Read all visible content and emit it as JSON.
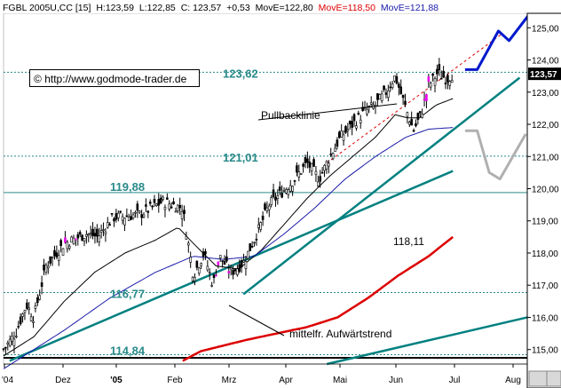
{
  "header": {
    "symbol": "FGBL 2005U,CC [15]",
    "high": "H:123,59",
    "low": "L:122,85",
    "close": "C: 123,57",
    "change": "+0,53",
    "move_e_label": "MovE=122,80",
    "move_e_red_label": "MovE=118,50",
    "move_e_blue_label": "MovE=121,88"
  },
  "copyright": {
    "symbol": "©",
    "url": "http://www.godmode-trader.de"
  },
  "chart_data": {
    "type": "candlestick",
    "ylim": [
      114.55,
      125.45
    ],
    "y_ticks": [
      "125,00",
      "124,00",
      "123,00",
      "122,00",
      "121,00",
      "120,00",
      "119,00",
      "118,00",
      "117,00",
      "116,00",
      "115,00"
    ],
    "x_ticks": [
      "2004",
      "Dez",
      "2005",
      "Feb",
      "Mrz",
      "Apr",
      "Mai",
      "Jun",
      "Jul",
      "Aug"
    ],
    "last_price": "123,57",
    "levels": [
      {
        "label": "123,62",
        "value": 123.62
      },
      {
        "label": "121,01",
        "value": 121.01
      },
      {
        "label": "119,88",
        "value": 119.88
      },
      {
        "label": "116,77",
        "value": 116.77
      },
      {
        "label": "114,84",
        "value": 114.84
      }
    ],
    "annotations": [
      {
        "text": "Pullbacklinie"
      },
      {
        "text": "118,11"
      },
      {
        "text": "mittelfr. Aufwärtstrend"
      }
    ],
    "colors": {
      "price": "#000000",
      "ma_black": "#000000",
      "ma_blue": "#1a1aaa",
      "ma_red": "#dd0000",
      "trend": "#008080",
      "level": "#2a8a8a",
      "forecast_blue": "#0018cc",
      "forecast_gray": "#b0b0b0",
      "highlight": "#ee00ee"
    },
    "series": [
      {
        "name": "Kurs",
        "style": "candles",
        "anchors": [
          [
            0,
            115.0
          ],
          [
            8,
            115.5
          ],
          [
            15,
            116.4
          ],
          [
            20,
            116.0
          ],
          [
            28,
            117.6
          ],
          [
            40,
            118.3
          ],
          [
            55,
            118.6
          ],
          [
            62,
            118.5
          ],
          [
            72,
            119.1
          ],
          [
            90,
            119.2
          ],
          [
            105,
            119.6
          ],
          [
            118,
            119.4
          ],
          [
            125,
            117.3
          ],
          [
            132,
            118.0
          ],
          [
            138,
            117.0
          ],
          [
            142,
            117.9
          ],
          [
            150,
            117.4
          ],
          [
            158,
            117.7
          ],
          [
            166,
            118.5
          ],
          [
            175,
            119.5
          ],
          [
            190,
            120.2
          ],
          [
            200,
            120.8
          ],
          [
            208,
            120.3
          ],
          [
            215,
            121.0
          ],
          [
            222,
            121.6
          ],
          [
            230,
            122.0
          ],
          [
            238,
            122.4
          ],
          [
            245,
            122.6
          ],
          [
            252,
            123.0
          ],
          [
            258,
            123.5
          ],
          [
            265,
            122.5
          ],
          [
            270,
            121.8
          ],
          [
            275,
            122.3
          ],
          [
            280,
            123.2
          ],
          [
            286,
            123.6
          ],
          [
            292,
            123.4
          ],
          [
            296,
            123.57
          ]
        ]
      },
      {
        "name": "MovE",
        "color": "#000000",
        "anchors": [
          [
            0,
            114.8
          ],
          [
            20,
            115.4
          ],
          [
            40,
            116.5
          ],
          [
            60,
            117.4
          ],
          [
            80,
            118.0
          ],
          [
            100,
            118.4
          ],
          [
            115,
            118.8
          ],
          [
            125,
            118.3
          ],
          [
            140,
            117.6
          ],
          [
            155,
            117.5
          ],
          [
            170,
            118.1
          ],
          [
            185,
            118.9
          ],
          [
            200,
            119.7
          ],
          [
            215,
            120.4
          ],
          [
            230,
            121.0
          ],
          [
            245,
            121.6
          ],
          [
            258,
            122.3
          ],
          [
            266,
            122.2
          ],
          [
            274,
            122.2
          ],
          [
            285,
            122.6
          ],
          [
            296,
            122.8
          ]
        ]
      },
      {
        "name": "MovE",
        "color": "#1a1aaa",
        "anchors": [
          [
            0,
            114.4
          ],
          [
            40,
            115.6
          ],
          [
            70,
            116.6
          ],
          [
            100,
            117.4
          ],
          [
            125,
            117.9
          ],
          [
            145,
            117.8
          ],
          [
            165,
            117.9
          ],
          [
            185,
            118.6
          ],
          [
            205,
            119.4
          ],
          [
            225,
            120.3
          ],
          [
            245,
            121.0
          ],
          [
            265,
            121.6
          ],
          [
            280,
            121.85
          ],
          [
            296,
            121.9
          ]
        ]
      },
      {
        "name": "MovE",
        "color": "#dd0000",
        "anchors": [
          [
            118,
            114.65
          ],
          [
            130,
            114.95
          ],
          [
            160,
            115.3
          ],
          [
            200,
            115.7
          ],
          [
            220,
            116.0
          ],
          [
            240,
            116.6
          ],
          [
            260,
            117.3
          ],
          [
            280,
            117.9
          ],
          [
            296,
            118.5
          ]
        ]
      }
    ],
    "trendlines": [
      {
        "from": [
          4,
          114.65
        ],
        "to": [
          296,
          120.55
        ],
        "color": "#008080"
      },
      {
        "from": [
          213,
          114.55
        ],
        "to": [
          345,
          116.0
        ],
        "color": "#008080"
      },
      {
        "from": [
          158,
          116.72
        ],
        "to": [
          340,
          123.45
        ],
        "color": "#008080"
      },
      {
        "from": [
          213,
          120.8
        ],
        "to": [
          328,
          124.8
        ],
        "color": "#dd0000",
        "dashed": true
      }
    ],
    "forecasts": [
      {
        "color": "#0018cc",
        "points": [
          [
            304,
            123.7
          ],
          [
            312,
            123.7
          ],
          [
            326,
            124.9
          ],
          [
            333,
            124.6
          ],
          [
            346,
            125.4
          ]
        ]
      },
      {
        "color": "#b0b0b0",
        "points": [
          [
            304,
            121.8
          ],
          [
            312,
            121.8
          ],
          [
            320,
            120.5
          ],
          [
            327,
            120.3
          ],
          [
            344,
            121.7
          ]
        ]
      }
    ]
  }
}
